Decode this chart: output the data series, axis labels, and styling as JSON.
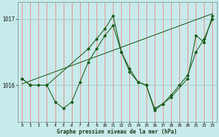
{
  "title": "Graphe pression niveau de la mer (hPa)",
  "bg_color": "#c8eaea",
  "plot_bg_color": "#c8eaea",
  "grid_color_v": "#f08080",
  "grid_color_h": "#a0c8c8",
  "line_color": "#1a5c1a",
  "ylim": [
    1015.45,
    1017.25
  ],
  "xlim": [
    -0.5,
    23.5
  ],
  "yticks": [
    1016,
    1017
  ],
  "xticks": [
    0,
    1,
    2,
    3,
    4,
    5,
    6,
    7,
    8,
    9,
    10,
    11,
    12,
    13,
    14,
    15,
    16,
    17,
    18,
    19,
    20,
    21,
    22,
    23
  ],
  "series1_x": [
    0,
    1,
    2,
    3,
    4,
    5,
    6,
    7,
    8,
    9,
    10,
    11,
    12,
    13,
    14,
    15,
    16,
    17,
    18,
    19,
    20,
    21,
    22,
    23
  ],
  "series1_y": [
    1016.1,
    1016.0,
    1016.0,
    1016.0,
    1015.75,
    1015.65,
    1015.75,
    1016.05,
    1016.35,
    1016.55,
    1016.75,
    1016.9,
    1016.5,
    1016.2,
    1016.05,
    1016.0,
    1015.65,
    1015.72,
    1015.85,
    1016.0,
    1016.15,
    1016.5,
    1016.7,
    1017.0
  ],
  "series2_x": [
    0,
    1,
    3,
    8,
    9,
    10,
    11,
    12,
    13,
    14,
    15,
    16,
    17,
    18,
    20,
    21,
    22,
    23
  ],
  "series2_y": [
    1016.1,
    1016.0,
    1016.0,
    1016.55,
    1016.7,
    1016.85,
    1017.05,
    1016.5,
    1016.25,
    1016.05,
    1016.0,
    1015.62,
    1015.72,
    1015.82,
    1016.1,
    1016.75,
    1016.65,
    1017.05
  ],
  "trend_x": [
    0,
    23
  ],
  "trend_y": [
    1016.02,
    1017.08
  ]
}
